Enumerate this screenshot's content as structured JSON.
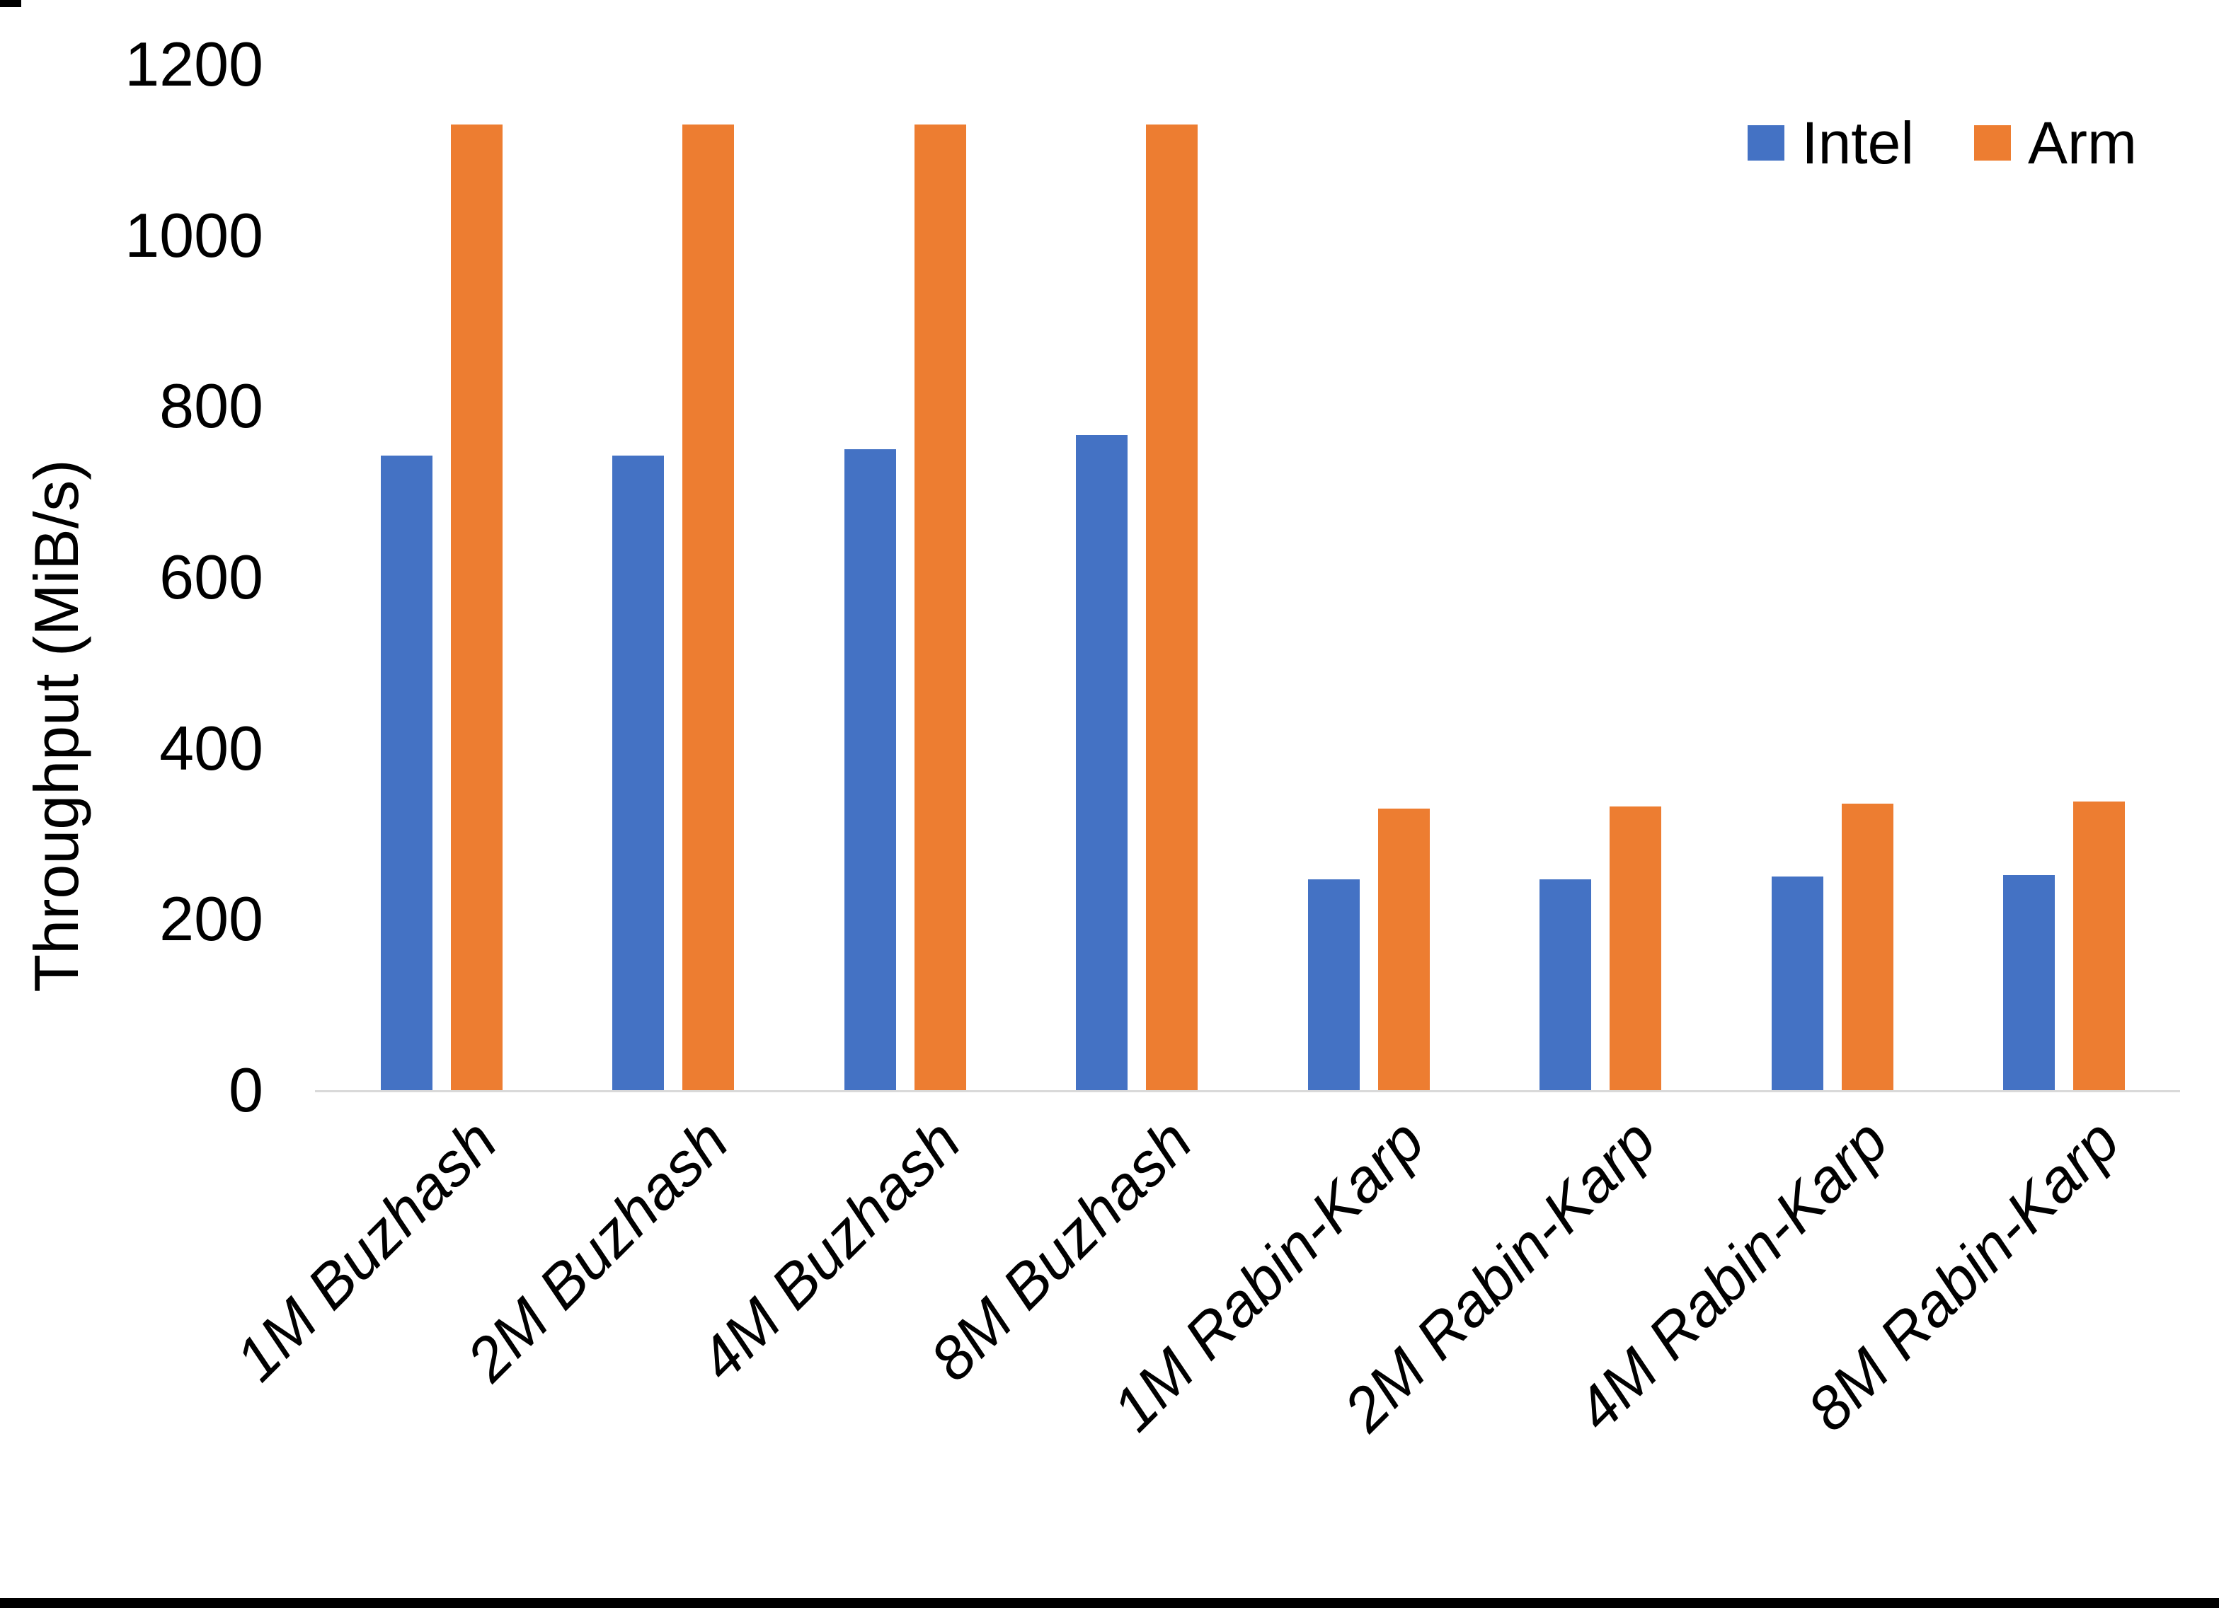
{
  "chart_data": {
    "type": "bar",
    "title": "",
    "xlabel": "",
    "ylabel": "Throughput (MiB/s)",
    "ylim": [
      0,
      1200
    ],
    "yticks": [
      0,
      200,
      400,
      600,
      800,
      1000,
      1200
    ],
    "grid": false,
    "legend_position": "top-right",
    "categories": [
      "1M Buzhash",
      "2M Buzhash",
      "4M Buzhash",
      "8M Buzhash",
      "1M Rabin-Karp",
      "2M Rabin-Karp",
      "4M Rabin-Karp",
      "8M Rabin-Karp"
    ],
    "series": [
      {
        "name": "Intel",
        "color": "#4472C4",
        "values": [
          742,
          742,
          750,
          766,
          247,
          247,
          250,
          252
        ]
      },
      {
        "name": "Arm",
        "color": "#ED7D31",
        "values": [
          1130,
          1130,
          1130,
          1130,
          329,
          332,
          335,
          338
        ]
      }
    ]
  },
  "colors": {
    "axis_line": "#d9d9d9",
    "text": "#000000",
    "background": "#ffffff",
    "border": "#000000"
  }
}
